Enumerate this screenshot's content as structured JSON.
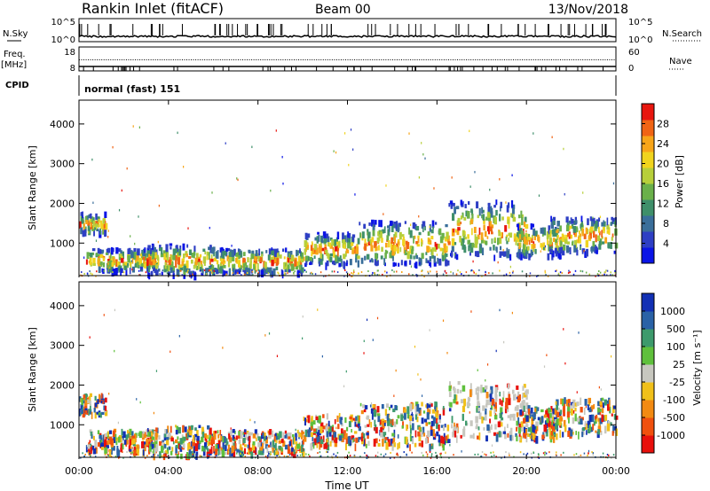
{
  "header": {
    "title": "Rankin Inlet (fitACF)",
    "beam": "Beam 00",
    "date": "13/Nov/2018"
  },
  "noise_panel": {
    "left_label": "N.Sky",
    "right_label": "N.Search",
    "left_ticks": [
      "10^5",
      "10^0"
    ],
    "right_ticks": [
      "10^5",
      "10^0"
    ]
  },
  "freq_panel": {
    "left_label_1": "Freq.",
    "left_label_2": "[MHz]",
    "right_label": "Nave",
    "left_ticks": [
      "18",
      "8"
    ],
    "right_ticks": [
      "60",
      "0"
    ]
  },
  "cpid_panel": {
    "label": "CPID",
    "text": "normal (fast) 151"
  },
  "power_panel": {
    "ylabel": "Slant Range [km]",
    "yticks": [
      "4000",
      "3000",
      "2000",
      "1000"
    ],
    "colorbar_label": "Power [dB]",
    "colorbar_ticks": [
      "28",
      "24",
      "20",
      "16",
      "12",
      "8",
      "4"
    ],
    "colors": [
      "#0a14e6",
      "#2e3fc4",
      "#3a6e9a",
      "#3f8f6a",
      "#6ab04a",
      "#b7cf3a",
      "#f0d41e",
      "#f7a519",
      "#f06414",
      "#e8160f"
    ]
  },
  "velocity_panel": {
    "ylabel": "Slant Range [km]",
    "yticks": [
      "4000",
      "3000",
      "2000",
      "1000"
    ],
    "colorbar_label": "Velocity [m s⁻¹]",
    "colorbar_ticks": [
      "1000",
      "500",
      "100",
      "25",
      "-25",
      "-100",
      "-500",
      "-1000"
    ],
    "colors": [
      "#1230b4",
      "#2a62a6",
      "#3d9a6c",
      "#5fc03c",
      "#c7c7bf",
      "#f0c01a",
      "#f28a12",
      "#f0500e",
      "#e8100c"
    ]
  },
  "x_axis": {
    "ticks": [
      "00:00",
      "04:00",
      "08:00",
      "12:00",
      "16:00",
      "20:00",
      "00:00"
    ],
    "label": "Time UT"
  },
  "chart_data": {
    "type": "heatmap",
    "x_range_hours": [
      0,
      24
    ],
    "y_range_km": [
      180,
      4600
    ],
    "echo_regions": [
      {
        "t0": 0.0,
        "t1": 1.2,
        "r0": 1300,
        "r1": 1800
      },
      {
        "t0": 0.3,
        "t1": 3.5,
        "r0": 350,
        "r1": 900
      },
      {
        "t0": 3.0,
        "t1": 6.0,
        "r0": 250,
        "r1": 1000
      },
      {
        "t0": 6.0,
        "t1": 10.0,
        "r0": 300,
        "r1": 900
      },
      {
        "t0": 10.0,
        "t1": 12.5,
        "r0": 500,
        "r1": 1300
      },
      {
        "t0": 12.5,
        "t1": 16.5,
        "r0": 500,
        "r1": 1600
      },
      {
        "t0": 16.5,
        "t1": 20.0,
        "r0": 700,
        "r1": 2100
      },
      {
        "t0": 19.5,
        "t1": 21.5,
        "r0": 700,
        "r1": 1500
      },
      {
        "t0": 21.0,
        "t1": 24.0,
        "r0": 800,
        "r1": 1700
      }
    ]
  }
}
